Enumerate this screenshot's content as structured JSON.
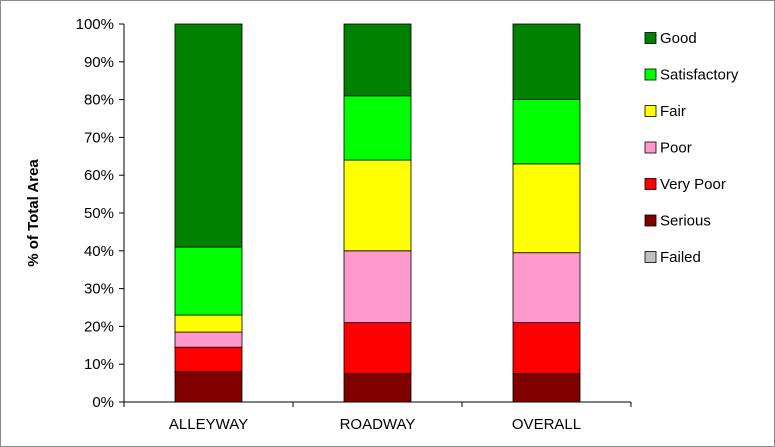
{
  "chart_data": {
    "type": "bar",
    "stacked": true,
    "normalized": true,
    "title": "",
    "xlabel": "",
    "ylabel": "% of Total Area",
    "ylim": [
      0,
      100
    ],
    "y_ticks": [
      "0%",
      "10%",
      "20%",
      "30%",
      "40%",
      "50%",
      "60%",
      "70%",
      "80%",
      "90%",
      "100%"
    ],
    "grid": false,
    "legend_position": "right",
    "categories": [
      "ALLEYWAY",
      "ROADWAY",
      "OVERALL"
    ],
    "series": [
      {
        "name": "Failed",
        "color": "#c0c0c0",
        "values": [
          0,
          0,
          0
        ]
      },
      {
        "name": "Serious",
        "color": "#800000",
        "values": [
          8,
          7.5,
          7.5
        ]
      },
      {
        "name": "Very Poor",
        "color": "#ff0000",
        "values": [
          6.5,
          13.5,
          13.5
        ]
      },
      {
        "name": "Poor",
        "color": "#ff99cc",
        "values": [
          4,
          19,
          18.5
        ]
      },
      {
        "name": "Fair",
        "color": "#ffff00",
        "values": [
          4.5,
          24,
          23.5
        ]
      },
      {
        "name": "Satisfactory",
        "color": "#00ff00",
        "values": [
          18,
          17,
          17
        ]
      },
      {
        "name": "Good",
        "color": "#008000",
        "values": [
          59,
          19,
          20
        ]
      }
    ],
    "legend_order": [
      "Good",
      "Satisfactory",
      "Fair",
      "Poor",
      "Very Poor",
      "Serious",
      "Failed"
    ]
  }
}
